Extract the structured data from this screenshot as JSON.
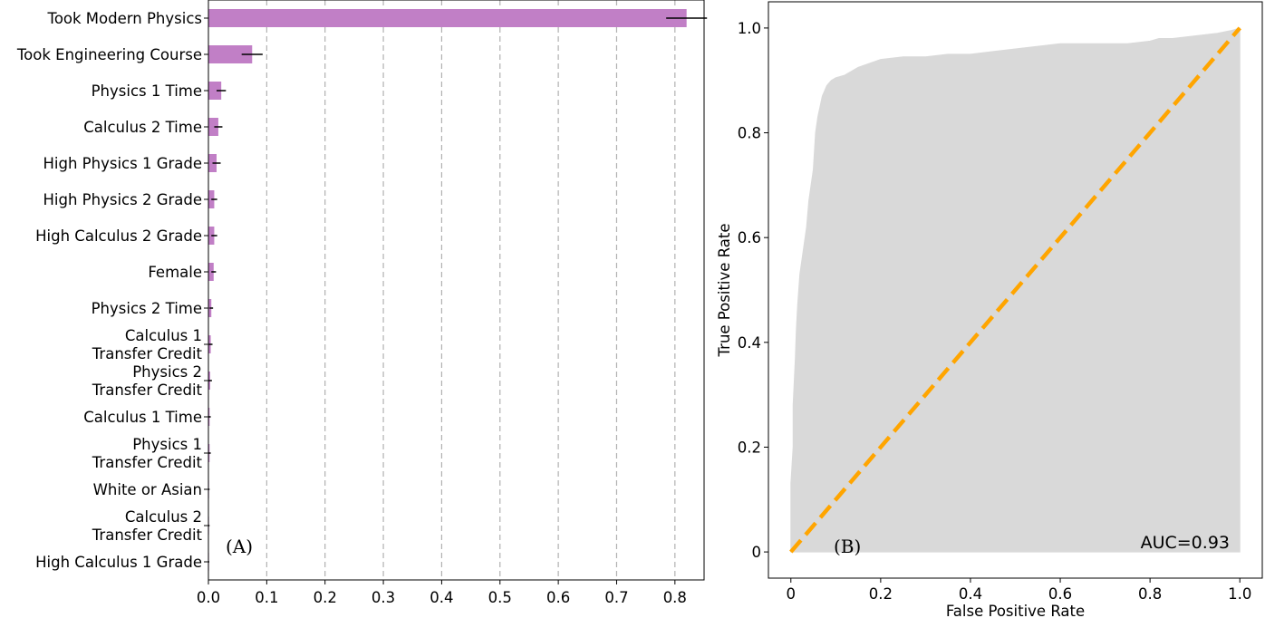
{
  "chart_data": [
    {
      "type": "bar",
      "orientation": "horizontal",
      "panel_label": "(A)",
      "categories": [
        [
          "Took Modern Physics"
        ],
        [
          "Took Engineering Course"
        ],
        [
          "Physics 1 Time"
        ],
        [
          "Calculus 2 Time"
        ],
        [
          "High Physics 1 Grade"
        ],
        [
          "High Physics 2 Grade"
        ],
        [
          "High Calculus 2 Grade"
        ],
        [
          "Female"
        ],
        [
          "Physics 2 Time"
        ],
        [
          "Calculus 1",
          "Transfer Credit"
        ],
        [
          "Physics 2",
          "Transfer Credit"
        ],
        [
          "Calculus 1 Time"
        ],
        [
          "Physics 1",
          "Transfer Credit"
        ],
        [
          "White or Asian"
        ],
        [
          "Calculus 2",
          "Transfer Credit"
        ],
        [
          "High Calculus 1 Grade"
        ]
      ],
      "values": [
        0.82,
        0.075,
        0.022,
        0.017,
        0.014,
        0.01,
        0.01,
        0.009,
        0.005,
        0.004,
        0.003,
        0.002,
        0.002,
        0.001,
        0.001,
        0.0005
      ],
      "errors": [
        0.035,
        0.018,
        0.008,
        0.007,
        0.007,
        0.005,
        0.005,
        0.004,
        0.003,
        0.003,
        0.003,
        0.002,
        0.002,
        0.001,
        0.001,
        0.001
      ],
      "xlim": [
        0,
        0.85
      ],
      "xticks": [
        0.0,
        0.1,
        0.2,
        0.3,
        0.4,
        0.5,
        0.6,
        0.7,
        0.8
      ],
      "xtick_labels": [
        "0.0",
        "0.1",
        "0.2",
        "0.3",
        "0.4",
        "0.5",
        "0.6",
        "0.7",
        "0.8"
      ],
      "grid": "vertical dashed",
      "bar_color": "#c17fc6",
      "error_color": "#000000",
      "grid_color": "#b0b0b0"
    },
    {
      "type": "area",
      "panel_label": "(B)",
      "xlabel": "False Positive Rate",
      "ylabel": "True Positive Rate",
      "annotation": "AUC=0.93",
      "xlim": [
        -0.05,
        1.05
      ],
      "ylim": [
        -0.05,
        1.05
      ],
      "xticks": [
        0,
        0.2,
        0.4,
        0.6,
        0.8,
        1.0
      ],
      "xtick_labels": [
        "0",
        "0.2",
        "0.4",
        "0.6",
        "0.8",
        "1.0"
      ],
      "yticks": [
        0,
        0.2,
        0.4,
        0.6,
        0.8,
        1.0
      ],
      "ytick_labels": [
        "0",
        "0.2",
        "0.4",
        "0.6",
        "0.8",
        "1.0"
      ],
      "roc_curve": {
        "x": [
          0,
          0.0,
          0.005,
          0.005,
          0.01,
          0.012,
          0.015,
          0.02,
          0.025,
          0.03,
          0.035,
          0.04,
          0.045,
          0.05,
          0.055,
          0.06,
          0.065,
          0.07,
          0.075,
          0.08,
          0.085,
          0.09,
          0.1,
          0.12,
          0.15,
          0.2,
          0.25,
          0.3,
          0.35,
          0.4,
          0.45,
          0.5,
          0.55,
          0.6,
          0.65,
          0.7,
          0.75,
          0.8,
          0.82,
          0.85,
          0.9,
          0.95,
          0.98,
          1.0
        ],
        "y": [
          0,
          0.13,
          0.2,
          0.28,
          0.37,
          0.42,
          0.47,
          0.53,
          0.56,
          0.59,
          0.62,
          0.67,
          0.7,
          0.73,
          0.8,
          0.83,
          0.85,
          0.87,
          0.88,
          0.89,
          0.895,
          0.9,
          0.905,
          0.91,
          0.925,
          0.94,
          0.945,
          0.945,
          0.95,
          0.95,
          0.955,
          0.96,
          0.965,
          0.97,
          0.97,
          0.97,
          0.97,
          0.975,
          0.98,
          0.98,
          0.985,
          0.99,
          0.995,
          1.0
        ]
      },
      "diagonal": {
        "x": [
          0,
          1
        ],
        "y": [
          0,
          1
        ]
      },
      "fill_color": "#d9d9d9",
      "diagonal_color": "#ffa500"
    }
  ]
}
